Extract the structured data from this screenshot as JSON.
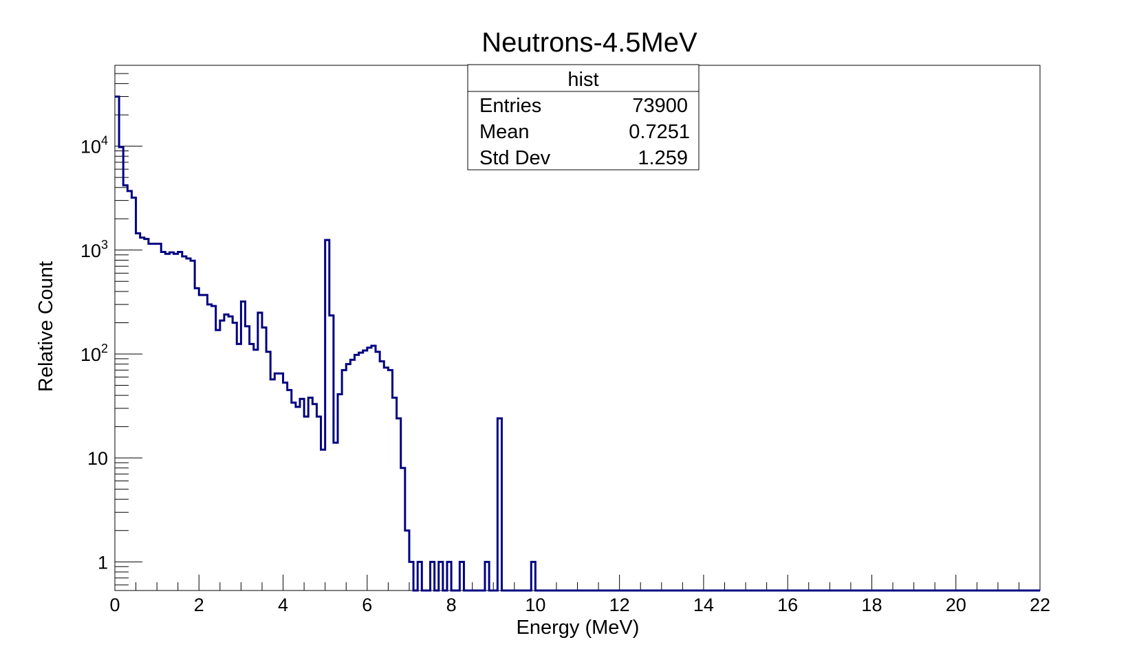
{
  "chart_data": {
    "type": "histogram",
    "title": "Neutrons-4.5MeV",
    "xlabel": "Energy (MeV)",
    "ylabel": "Relative Count",
    "xlim": [
      0,
      22
    ],
    "ylim": [
      0.53,
      60000
    ],
    "yscale": "log",
    "grid": false,
    "line_color": "#000080",
    "x_ticks": [
      0,
      2,
      4,
      6,
      8,
      10,
      12,
      14,
      16,
      18,
      20,
      22
    ],
    "x_tick_labels": [
      "0",
      "2",
      "4",
      "6",
      "8",
      "10",
      "12",
      "14",
      "16",
      "18",
      "20",
      "22"
    ],
    "y_ticks": [
      1,
      10,
      100,
      1000,
      10000
    ],
    "y_tick_labels": [
      {
        "base": "1",
        "exp": ""
      },
      {
        "base": "10",
        "exp": ""
      },
      {
        "base": "10",
        "exp": "2"
      },
      {
        "base": "10",
        "exp": "3"
      },
      {
        "base": "10",
        "exp": "4"
      }
    ],
    "bin_width": 0.1,
    "bins": [
      [
        0.0,
        30000
      ],
      [
        0.1,
        9800
      ],
      [
        0.2,
        4200
      ],
      [
        0.3,
        3700
      ],
      [
        0.4,
        3200
      ],
      [
        0.5,
        1450
      ],
      [
        0.6,
        1320
      ],
      [
        0.7,
        1280
      ],
      [
        0.8,
        1150
      ],
      [
        0.9,
        1150
      ],
      [
        1.0,
        1150
      ],
      [
        1.1,
        960
      ],
      [
        1.2,
        920
      ],
      [
        1.3,
        950
      ],
      [
        1.4,
        920
      ],
      [
        1.5,
        960
      ],
      [
        1.6,
        870
      ],
      [
        1.7,
        830
      ],
      [
        1.8,
        790
      ],
      [
        1.9,
        430
      ],
      [
        2.0,
        370
      ],
      [
        2.1,
        370
      ],
      [
        2.2,
        300
      ],
      [
        2.3,
        290
      ],
      [
        2.4,
        170
      ],
      [
        2.5,
        210
      ],
      [
        2.6,
        240
      ],
      [
        2.7,
        230
      ],
      [
        2.8,
        200
      ],
      [
        2.9,
        125
      ],
      [
        3.0,
        320
      ],
      [
        3.1,
        185
      ],
      [
        3.2,
        125
      ],
      [
        3.3,
        110
      ],
      [
        3.4,
        250
      ],
      [
        3.5,
        180
      ],
      [
        3.6,
        105
      ],
      [
        3.7,
        57
      ],
      [
        3.8,
        65
      ],
      [
        3.9,
        65
      ],
      [
        4.0,
        53
      ],
      [
        4.1,
        45
      ],
      [
        4.2,
        34
      ],
      [
        4.3,
        31
      ],
      [
        4.4,
        37
      ],
      [
        4.5,
        25
      ],
      [
        4.6,
        38
      ],
      [
        4.7,
        33
      ],
      [
        4.8,
        25
      ],
      [
        4.9,
        12
      ],
      [
        5.0,
        1250
      ],
      [
        5.1,
        235
      ],
      [
        5.2,
        14
      ],
      [
        5.3,
        41
      ],
      [
        5.4,
        70
      ],
      [
        5.5,
        80
      ],
      [
        5.6,
        88
      ],
      [
        5.7,
        98
      ],
      [
        5.8,
        103
      ],
      [
        5.9,
        108
      ],
      [
        6.0,
        115
      ],
      [
        6.1,
        120
      ],
      [
        6.2,
        105
      ],
      [
        6.3,
        85
      ],
      [
        6.4,
        74
      ],
      [
        6.5,
        70
      ],
      [
        6.6,
        38
      ],
      [
        6.7,
        24
      ],
      [
        6.8,
        8
      ],
      [
        6.9,
        2
      ],
      [
        7.0,
        1
      ],
      [
        7.1,
        0
      ],
      [
        7.2,
        1
      ],
      [
        7.3,
        0
      ],
      [
        7.4,
        0
      ],
      [
        7.5,
        1
      ],
      [
        7.6,
        0
      ],
      [
        7.7,
        1
      ],
      [
        7.8,
        0
      ],
      [
        7.9,
        1
      ],
      [
        8.0,
        0
      ],
      [
        8.1,
        0
      ],
      [
        8.2,
        1
      ],
      [
        8.3,
        0
      ],
      [
        8.4,
        0
      ],
      [
        8.5,
        0
      ],
      [
        8.6,
        0
      ],
      [
        8.7,
        0
      ],
      [
        8.8,
        1
      ],
      [
        8.9,
        0
      ],
      [
        9.0,
        0
      ],
      [
        9.1,
        24
      ],
      [
        9.2,
        0
      ],
      [
        9.3,
        0
      ],
      [
        9.4,
        0
      ],
      [
        9.5,
        0
      ],
      [
        9.6,
        0
      ],
      [
        9.7,
        0
      ],
      [
        9.8,
        0
      ],
      [
        9.9,
        1
      ],
      [
        10.0,
        0
      ]
    ]
  },
  "stats_box": {
    "title": "hist",
    "rows": [
      {
        "label": "Entries",
        "value": "73900"
      },
      {
        "label": "Mean",
        "value": "0.7251"
      },
      {
        "label": "Std Dev",
        "value": "1.259"
      }
    ]
  }
}
